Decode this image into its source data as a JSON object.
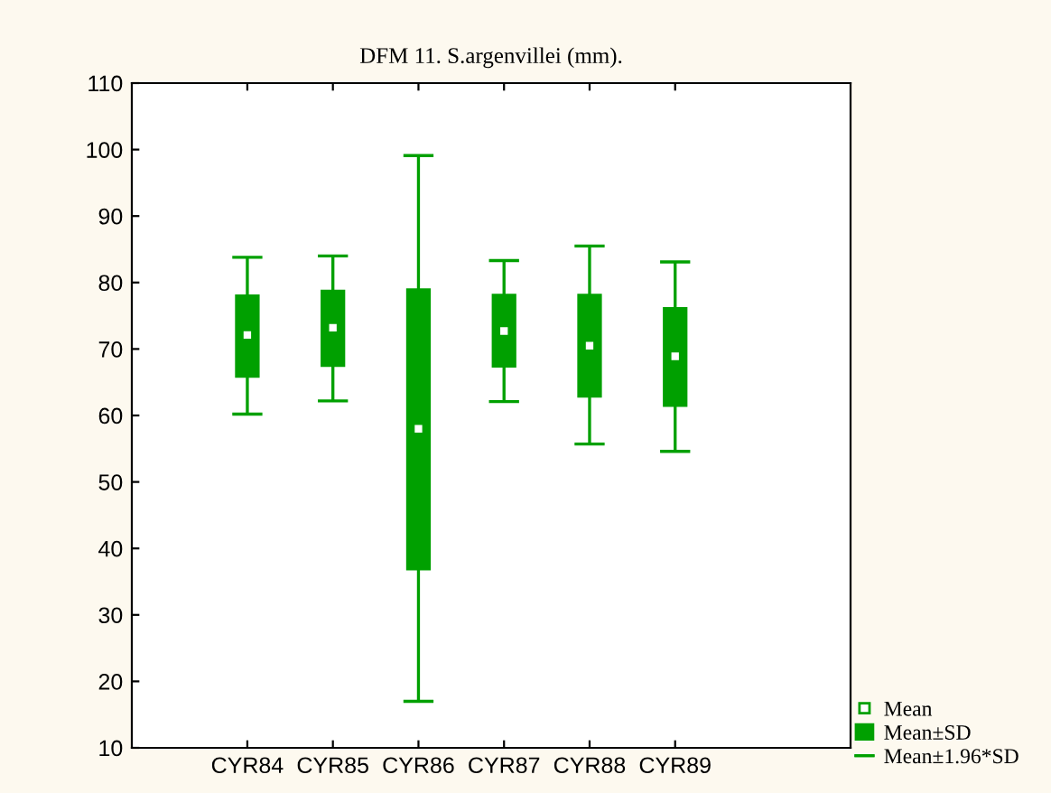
{
  "chart_data": {
    "type": "bar",
    "title": "DFM 11. S.argenvillei (mm).",
    "categories": [
      "CYR84",
      "CYR85",
      "CYR86",
      "CYR87",
      "CYR88",
      "CYR89"
    ],
    "series": [
      {
        "type": "scatter",
        "name": "Mean",
        "color": "#ffffff",
        "values": [
          72.1,
          73.2,
          58.0,
          72.7,
          70.5,
          68.9
        ]
      },
      {
        "name": "Mean±SD",
        "color": "#00a000",
        "base": [
          65.8,
          67.4,
          36.8,
          67.3,
          62.8,
          61.4
        ],
        "values": [
          12.3,
          11.4,
          42.2,
          10.9,
          15.4,
          14.8
        ],
        "errors": [
          [
            60.2,
            83.8
          ],
          [
            62.2,
            84.0
          ],
          [
            17.0,
            99.1
          ],
          [
            62.1,
            83.3
          ],
          [
            55.7,
            85.5
          ],
          [
            54.6,
            83.1
          ]
        ]
      }
    ],
    "annotations": [
      "Mean±1.96*SD"
    ],
    "ylim": [
      10,
      110
    ],
    "yticks": [
      10,
      20,
      30,
      40,
      50,
      60,
      70,
      80,
      90,
      100,
      110
    ],
    "grid": false,
    "legend": "bottom right"
  }
}
